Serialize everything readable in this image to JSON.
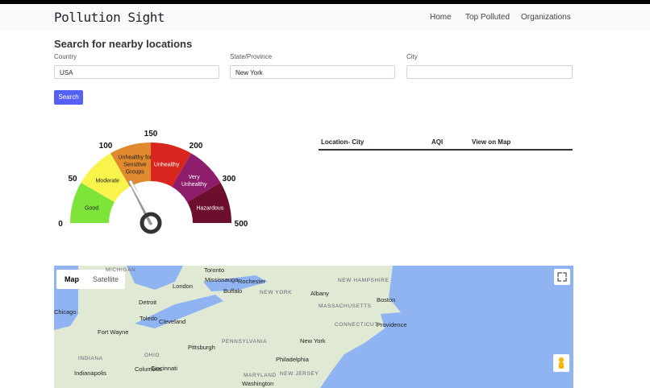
{
  "nav": {
    "brand": "Pollution Sight",
    "links": [
      "Home",
      "Top Polluted",
      "Organizations"
    ]
  },
  "search": {
    "heading": "Search for nearby locations",
    "fields": [
      {
        "label": "Country",
        "value": "USA"
      },
      {
        "label": "State/Province",
        "value": "New York"
      },
      {
        "label": "City",
        "value": ""
      }
    ],
    "button": "Search"
  },
  "gauge": {
    "ticks": [
      0,
      50,
      100,
      150,
      200,
      300,
      500
    ],
    "segments": [
      [
        "Good"
      ],
      [
        "Moderate"
      ],
      [
        "Unhealthy for",
        "Sensitive",
        "Groups"
      ],
      [
        "Unhealthy"
      ],
      [
        "Very",
        "Unhealthy"
      ],
      [
        "Hazardous"
      ]
    ],
    "colors": [
      "#7ee43a",
      "#f8f44c",
      "#e0892f",
      "#d8261e",
      "#8e1d6b",
      "#6c0f2d"
    ]
  },
  "table": {
    "headers": [
      "Location- City",
      "AQI",
      "View on Map"
    ]
  },
  "map": {
    "buttons": [
      "Map",
      "Satellite"
    ],
    "labels": [
      "Toronto",
      "Mississauga",
      "MICHIGAN",
      "London",
      "Rochester",
      "Buffalo",
      "NEW YORK",
      "Albany",
      "NEW HAMPSHIRE",
      "MASSACHUSETTS",
      "Boston",
      "Detroit",
      "Chicago",
      "Toledo",
      "Cleveland",
      "Fort Wayne",
      "CONNECTICUT",
      "Providence",
      "New York",
      "PENNSYLVANIA",
      "Pittsburgh",
      "INDIANA",
      "OHIO",
      "Philadelphia",
      "Columbus",
      "Indianapolis",
      "Cincinnati",
      "MARYLAND",
      "NEW JERSEY",
      "Washington"
    ]
  }
}
